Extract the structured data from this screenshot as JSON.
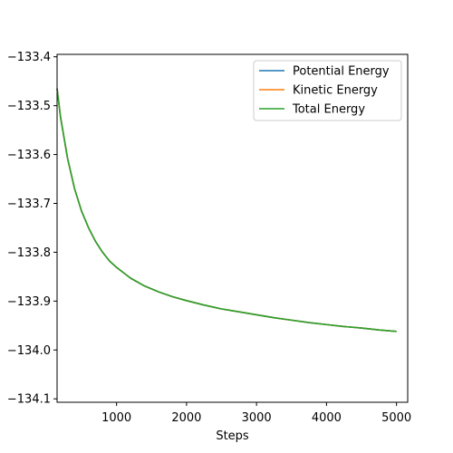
{
  "chart_data": {
    "type": "line",
    "title": "",
    "xlabel": "Steps",
    "ylabel": "",
    "xlim": [
      150,
      5160
    ],
    "ylim": [
      -134.107,
      -133.395
    ],
    "grid": false,
    "legend_position": "top-right",
    "x_ticks": [
      1000,
      2000,
      3000,
      4000,
      5000
    ],
    "x_tick_labels": [
      "1000",
      "2000",
      "3000",
      "4000",
      "5000"
    ],
    "y_ticks": [
      -133.4,
      -133.5,
      -133.6,
      -133.7,
      -133.8,
      -133.9,
      -134.0,
      -134.1
    ],
    "y_tick_labels": [
      "−133.4",
      "−133.5",
      "−133.6",
      "−133.7",
      "−133.8",
      "−133.9",
      "−134.0",
      "−134.1"
    ],
    "x": [
      150,
      200,
      300,
      400,
      500,
      600,
      700,
      800,
      900,
      1000,
      1200,
      1400,
      1600,
      1800,
      2000,
      2250,
      2500,
      2750,
      3000,
      3250,
      3500,
      3750,
      4000,
      4250,
      4500,
      4750,
      5000
    ],
    "series": [
      {
        "name": "Potential Energy",
        "color": "#1f77b4",
        "values": [
          -133.465,
          -133.524,
          -133.608,
          -133.67,
          -133.716,
          -133.75,
          -133.778,
          -133.8,
          -133.818,
          -133.831,
          -133.853,
          -133.869,
          -133.881,
          -133.891,
          -133.899,
          -133.908,
          -133.916,
          -133.922,
          -133.928,
          -133.934,
          -133.939,
          -133.944,
          -133.948,
          -133.952,
          -133.955,
          -133.959,
          -133.962
        ]
      },
      {
        "name": "Kinetic Energy",
        "color": "#ff7f0e",
        "values": [
          -133.465,
          -133.524,
          -133.608,
          -133.67,
          -133.716,
          -133.75,
          -133.778,
          -133.8,
          -133.818,
          -133.831,
          -133.853,
          -133.869,
          -133.881,
          -133.891,
          -133.899,
          -133.908,
          -133.916,
          -133.922,
          -133.928,
          -133.934,
          -133.939,
          -133.944,
          -133.948,
          -133.952,
          -133.955,
          -133.959,
          -133.962
        ]
      },
      {
        "name": "Total Energy",
        "color": "#2ca02c",
        "values": [
          -133.465,
          -133.524,
          -133.608,
          -133.67,
          -133.716,
          -133.75,
          -133.778,
          -133.8,
          -133.818,
          -133.831,
          -133.853,
          -133.869,
          -133.881,
          -133.891,
          -133.899,
          -133.908,
          -133.916,
          -133.922,
          -133.928,
          -133.934,
          -133.939,
          -133.944,
          -133.948,
          -133.952,
          -133.955,
          -133.959,
          -133.962
        ]
      }
    ]
  }
}
